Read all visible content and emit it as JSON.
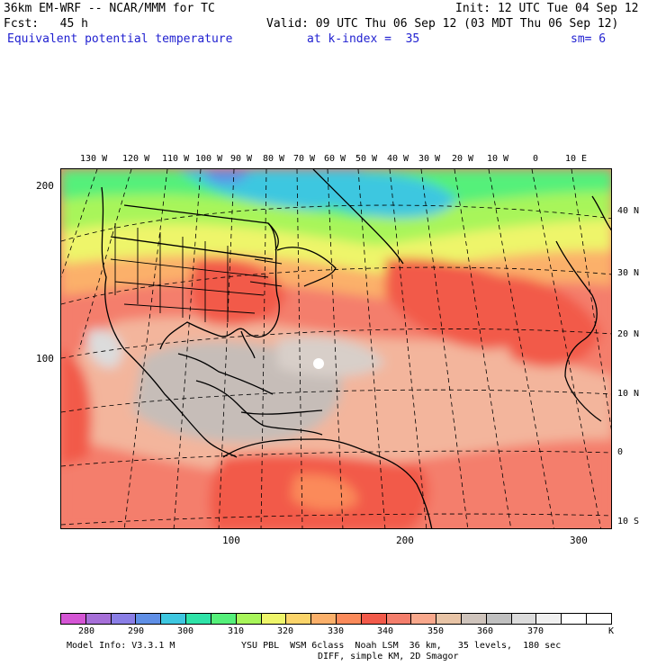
{
  "header": {
    "model": "36km EM-WRF -- NCAR/MMM for TC",
    "init": "Init: 12 UTC Tue 04 Sep 12",
    "fcst": "Fcst:   45 h",
    "valid": "Valid: 09 UTC Thu 06 Sep 12 (03 MDT Thu 06 Sep 12)",
    "field": "Equivalent potential temperature",
    "level": "at k-index =  35",
    "smoothing": "sm= 6"
  },
  "map": {
    "lon_labels": [
      "130 W",
      "120 W",
      "110 W",
      "100 W",
      "90 W",
      "80 W",
      "70 W",
      "60 W",
      "50 W",
      "40 W",
      "30 W",
      "20 W",
      "10 W",
      "0",
      "10 E"
    ],
    "lat_labels": [
      "40 N",
      "30 N",
      "20 N",
      "10 N",
      "0",
      "10 S"
    ],
    "y_axis_labels": [
      "200",
      "100"
    ],
    "x_axis_labels": [
      "100",
      "200",
      "300"
    ]
  },
  "colorbar": {
    "colors": [
      "#d455d4",
      "#a66fd8",
      "#8a7ee6",
      "#5f8fe6",
      "#3ec7e0",
      "#2fe3a8",
      "#55f07a",
      "#a8f55a",
      "#eef56a",
      "#fbd46a",
      "#fbb06a",
      "#fb8a5a",
      "#f25a4a",
      "#f47e6c",
      "#f9a88c",
      "#e8c4a6",
      "#cfc4bc",
      "#c0c0c0",
      "#dcdcdc",
      "#f0f0f0",
      "#ffffff",
      "#ffffff"
    ],
    "labels": [
      "280",
      "290",
      "300",
      "310",
      "320",
      "330",
      "340",
      "350",
      "360",
      "370",
      "K"
    ]
  },
  "footer": {
    "model_info": "Model Info: V3.3.1 M",
    "physics": "YSU PBL  WSM 6class  Noah LSM  36 km,   35 levels,  180 sec",
    "diff": "DIFF, simple KM, 2D Smagor"
  }
}
